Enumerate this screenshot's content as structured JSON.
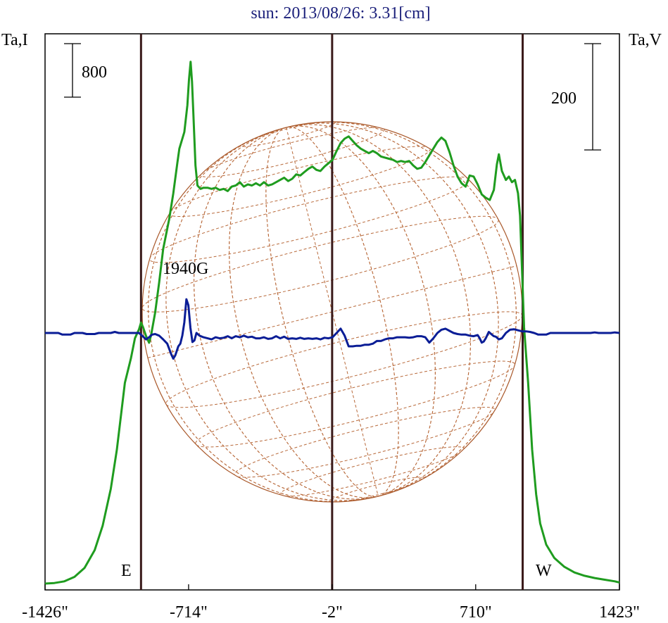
{
  "chart_data": {
    "type": "line",
    "title": "sun: 2013/08/26: 3.31[cm]",
    "left_axis_label": "Ta,I",
    "right_axis_label": "Ta,V",
    "xlim": [
      -1426,
      1423
    ],
    "x_ticks": [
      {
        "value": -1426,
        "label": "-1426\""
      },
      {
        "value": -714,
        "label": "-714\""
      },
      {
        "value": -2,
        "label": "-2\""
      },
      {
        "value": 710,
        "label": "710\""
      },
      {
        "value": 1423,
        "label": "1423\""
      }
    ],
    "scale_bar_I": "800",
    "scale_bar_V": "200",
    "marker_E": "E",
    "marker_W": "W",
    "annotation": "1940G",
    "vertical_lines_x": [
      -950,
      -2,
      943
    ],
    "series": [
      {
        "key": "I",
        "color": "#1f9c1f",
        "points": [
          [
            -1426,
            0
          ],
          [
            -1380,
            5
          ],
          [
            -1330,
            20
          ],
          [
            -1280,
            60
          ],
          [
            -1230,
            140
          ],
          [
            -1180,
            300
          ],
          [
            -1140,
            520
          ],
          [
            -1100,
            850
          ],
          [
            -1070,
            1200
          ],
          [
            -1050,
            1500
          ],
          [
            -1030,
            1800
          ],
          [
            -1000,
            2020
          ],
          [
            -980,
            2200
          ],
          [
            -960,
            2280
          ],
          [
            -950,
            2340
          ],
          [
            -940,
            2300
          ],
          [
            -925,
            2220
          ],
          [
            -910,
            2160
          ],
          [
            -900,
            2230
          ],
          [
            -880,
            2430
          ],
          [
            -860,
            2700
          ],
          [
            -840,
            3000
          ],
          [
            -810,
            3270
          ],
          [
            -790,
            3500
          ],
          [
            -770,
            3770
          ],
          [
            -760,
            3900
          ],
          [
            -735,
            4050
          ],
          [
            -720,
            4290
          ],
          [
            -712,
            4520
          ],
          [
            -704,
            4680
          ],
          [
            -697,
            4500
          ],
          [
            -690,
            4200
          ],
          [
            -680,
            3750
          ],
          [
            -670,
            3570
          ],
          [
            -655,
            3540
          ],
          [
            -640,
            3550
          ],
          [
            -620,
            3550
          ],
          [
            -600,
            3540
          ],
          [
            -580,
            3550
          ],
          [
            -560,
            3530
          ],
          [
            -540,
            3540
          ],
          [
            -520,
            3520
          ],
          [
            -500,
            3560
          ],
          [
            -480,
            3570
          ],
          [
            -460,
            3600
          ],
          [
            -440,
            3560
          ],
          [
            -420,
            3580
          ],
          [
            -400,
            3570
          ],
          [
            -380,
            3590
          ],
          [
            -360,
            3570
          ],
          [
            -340,
            3600
          ],
          [
            -320,
            3570
          ],
          [
            -300,
            3580
          ],
          [
            -280,
            3600
          ],
          [
            -260,
            3620
          ],
          [
            -240,
            3640
          ],
          [
            -220,
            3610
          ],
          [
            -200,
            3630
          ],
          [
            -180,
            3670
          ],
          [
            -160,
            3660
          ],
          [
            -140,
            3690
          ],
          [
            -120,
            3720
          ],
          [
            -100,
            3740
          ],
          [
            -80,
            3710
          ],
          [
            -60,
            3700
          ],
          [
            -40,
            3740
          ],
          [
            -20,
            3770
          ],
          [
            0,
            3800
          ],
          [
            20,
            3880
          ],
          [
            40,
            3950
          ],
          [
            60,
            3990
          ],
          [
            80,
            4010
          ],
          [
            100,
            3970
          ],
          [
            120,
            3930
          ],
          [
            140,
            3900
          ],
          [
            160,
            3880
          ],
          [
            180,
            3860
          ],
          [
            200,
            3880
          ],
          [
            220,
            3860
          ],
          [
            240,
            3830
          ],
          [
            260,
            3820
          ],
          [
            280,
            3810
          ],
          [
            300,
            3800
          ],
          [
            320,
            3780
          ],
          [
            340,
            3790
          ],
          [
            360,
            3780
          ],
          [
            380,
            3790
          ],
          [
            400,
            3750
          ],
          [
            420,
            3720
          ],
          [
            440,
            3730
          ],
          [
            460,
            3780
          ],
          [
            480,
            3840
          ],
          [
            500,
            3900
          ],
          [
            520,
            3960
          ],
          [
            540,
            4000
          ],
          [
            560,
            3970
          ],
          [
            580,
            3870
          ],
          [
            600,
            3750
          ],
          [
            620,
            3650
          ],
          [
            640,
            3590
          ],
          [
            660,
            3560
          ],
          [
            680,
            3660
          ],
          [
            700,
            3650
          ],
          [
            720,
            3580
          ],
          [
            740,
            3490
          ],
          [
            760,
            3460
          ],
          [
            780,
            3440
          ],
          [
            800,
            3530
          ],
          [
            815,
            3760
          ],
          [
            825,
            3850
          ],
          [
            840,
            3700
          ],
          [
            860,
            3620
          ],
          [
            875,
            3650
          ],
          [
            890,
            3600
          ],
          [
            905,
            3620
          ],
          [
            920,
            3500
          ],
          [
            930,
            3300
          ],
          [
            940,
            2800
          ],
          [
            950,
            2300
          ],
          [
            970,
            1800
          ],
          [
            990,
            1200
          ],
          [
            1010,
            800
          ],
          [
            1030,
            540
          ],
          [
            1060,
            350
          ],
          [
            1100,
            230
          ],
          [
            1150,
            150
          ],
          [
            1200,
            100
          ],
          [
            1250,
            70
          ],
          [
            1300,
            50
          ],
          [
            1350,
            35
          ],
          [
            1400,
            20
          ],
          [
            1423,
            10
          ]
        ]
      },
      {
        "key": "V",
        "color": "#0a1d96",
        "points": [
          [
            -1426,
            0
          ],
          [
            -1360,
            0
          ],
          [
            -1340,
            -3
          ],
          [
            -1300,
            -3
          ],
          [
            -1280,
            0
          ],
          [
            -1240,
            0
          ],
          [
            -1220,
            -2
          ],
          [
            -1180,
            -2
          ],
          [
            -1160,
            0
          ],
          [
            -1100,
            0
          ],
          [
            -1080,
            2
          ],
          [
            -1060,
            0
          ],
          [
            -1000,
            0
          ],
          [
            -960,
            0
          ],
          [
            -945,
            -5
          ],
          [
            -925,
            -12
          ],
          [
            -910,
            -8
          ],
          [
            -895,
            -3
          ],
          [
            -880,
            -2
          ],
          [
            -860,
            -5
          ],
          [
            -840,
            -12
          ],
          [
            -820,
            -20
          ],
          [
            -800,
            -40
          ],
          [
            -790,
            -48
          ],
          [
            -780,
            -42
          ],
          [
            -765,
            -25
          ],
          [
            -755,
            -20
          ],
          [
            -745,
            -5
          ],
          [
            -735,
            20
          ],
          [
            -725,
            63
          ],
          [
            -715,
            52
          ],
          [
            -705,
            10
          ],
          [
            -695,
            -17
          ],
          [
            -685,
            -14
          ],
          [
            -675,
            0
          ],
          [
            -660,
            -5
          ],
          [
            -640,
            -8
          ],
          [
            -620,
            -10
          ],
          [
            -600,
            -12
          ],
          [
            -580,
            -8
          ],
          [
            -560,
            -10
          ],
          [
            -540,
            -9
          ],
          [
            -520,
            -6
          ],
          [
            -500,
            -10
          ],
          [
            -480,
            -6
          ],
          [
            -460,
            -8
          ],
          [
            -440,
            -5
          ],
          [
            -420,
            -8
          ],
          [
            -400,
            -7
          ],
          [
            -380,
            -10
          ],
          [
            -360,
            -10
          ],
          [
            -340,
            -8
          ],
          [
            -320,
            -11
          ],
          [
            -300,
            -10
          ],
          [
            -280,
            -6
          ],
          [
            -260,
            -10
          ],
          [
            -240,
            -7
          ],
          [
            -220,
            -11
          ],
          [
            -200,
            -10
          ],
          [
            -180,
            -11
          ],
          [
            -160,
            -9
          ],
          [
            -140,
            -11
          ],
          [
            -120,
            -10
          ],
          [
            -100,
            -11
          ],
          [
            -80,
            -10
          ],
          [
            -60,
            -12
          ],
          [
            -40,
            -9
          ],
          [
            -20,
            -10
          ],
          [
            0,
            -8
          ],
          [
            20,
            0
          ],
          [
            40,
            8
          ],
          [
            60,
            -5
          ],
          [
            80,
            -25
          ],
          [
            100,
            -25
          ],
          [
            120,
            -24
          ],
          [
            140,
            -24
          ],
          [
            160,
            -22
          ],
          [
            180,
            -22
          ],
          [
            200,
            -20
          ],
          [
            220,
            -15
          ],
          [
            240,
            -15
          ],
          [
            260,
            -12
          ],
          [
            280,
            -10
          ],
          [
            300,
            -10
          ],
          [
            320,
            -8
          ],
          [
            340,
            -8
          ],
          [
            360,
            -8
          ],
          [
            380,
            -9
          ],
          [
            400,
            -8
          ],
          [
            420,
            -6
          ],
          [
            440,
            -6
          ],
          [
            460,
            -8
          ],
          [
            480,
            -18
          ],
          [
            500,
            -10
          ],
          [
            520,
            0
          ],
          [
            540,
            6
          ],
          [
            560,
            8
          ],
          [
            580,
            4
          ],
          [
            600,
            0
          ],
          [
            620,
            -2
          ],
          [
            640,
            -3
          ],
          [
            660,
            -3
          ],
          [
            680,
            -5
          ],
          [
            700,
            -6
          ],
          [
            720,
            -4
          ],
          [
            730,
            -10
          ],
          [
            740,
            -18
          ],
          [
            750,
            -16
          ],
          [
            760,
            -10
          ],
          [
            775,
            2
          ],
          [
            790,
            -3
          ],
          [
            800,
            -6
          ],
          [
            810,
            -7
          ],
          [
            825,
            -12
          ],
          [
            840,
            -10
          ],
          [
            860,
            0
          ],
          [
            880,
            6
          ],
          [
            900,
            7
          ],
          [
            920,
            5
          ],
          [
            940,
            3
          ],
          [
            960,
            3
          ],
          [
            980,
            2
          ],
          [
            1000,
            0
          ],
          [
            1020,
            -3
          ],
          [
            1060,
            -3
          ],
          [
            1080,
            0
          ],
          [
            1200,
            0
          ],
          [
            1280,
            0
          ],
          [
            1300,
            1
          ],
          [
            1320,
            0
          ],
          [
            1380,
            0
          ],
          [
            1400,
            1
          ],
          [
            1423,
            0
          ]
        ]
      }
    ]
  }
}
